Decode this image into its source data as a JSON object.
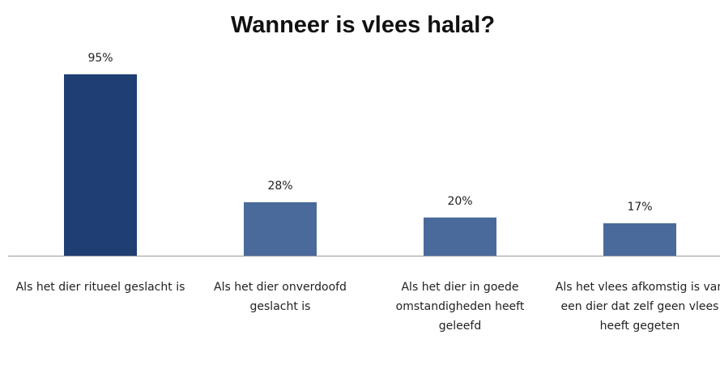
{
  "chart_data": {
    "type": "bar",
    "title": "Wanneer is vlees halal?",
    "categories": [
      "Als het dier ritueel geslacht is",
      "Als het dier onverdoofd geslacht is",
      "Als het dier in goede omstandigheden heeft geleefd",
      "Als het vlees afkomstig is van een dier dat zelf geen vlees heeft gegeten"
    ],
    "values": [
      95,
      28,
      20,
      17
    ],
    "value_labels": [
      "95%",
      "28%",
      "20%",
      "17%"
    ],
    "colors": [
      "#1f3e72",
      "#4a6a9b",
      "#4a6a9b",
      "#4a6a9b"
    ]
  }
}
